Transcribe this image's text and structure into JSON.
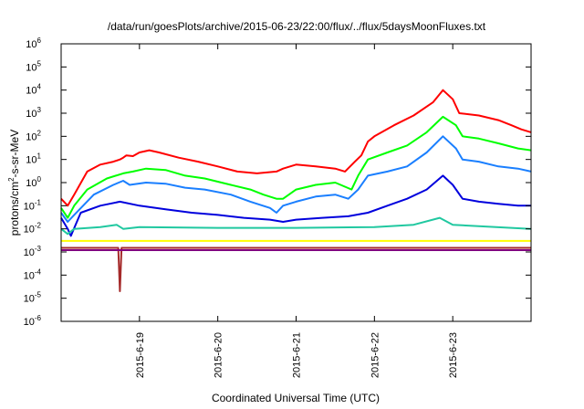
{
  "chart_data": {
    "type": "line",
    "title": "/data/run/goesPlots/archive/2015-06-23/22:00/flux/../flux/5daysMoonFluxes.txt",
    "xlabel": "Coordinated Universal Time (UTC)",
    "ylabel": {
      "prefix": "protons/cm",
      "sup": "2",
      "suffix": "-s-sr-MeV"
    },
    "y_scale": "log",
    "ylim": [
      1e-06,
      1000000.0
    ],
    "y_ticks": [
      {
        "value": 1e-06,
        "base": "10",
        "exp": "-6"
      },
      {
        "value": 1e-05,
        "base": "10",
        "exp": "-5"
      },
      {
        "value": 0.0001,
        "base": "10",
        "exp": "-4"
      },
      {
        "value": 0.001,
        "base": "10",
        "exp": "-3"
      },
      {
        "value": 0.01,
        "base": "10",
        "exp": "-2"
      },
      {
        "value": 0.1,
        "base": "10",
        "exp": "-1"
      },
      {
        "value": 1,
        "base": "10",
        "exp": "0"
      },
      {
        "value": 10.0,
        "base": "10",
        "exp": "1"
      },
      {
        "value": 100.0,
        "base": "10",
        "exp": "2"
      },
      {
        "value": 1000.0,
        "base": "10",
        "exp": "3"
      },
      {
        "value": 10000.0,
        "base": "10",
        "exp": "4"
      },
      {
        "value": 100000.0,
        "base": "10",
        "exp": "5"
      },
      {
        "value": 1000000.0,
        "base": "10",
        "exp": "6"
      }
    ],
    "x_range": [
      "2015-06-18T00:00",
      "2015-06-24T00:00"
    ],
    "x_ticks": [
      "2015-6-19",
      "2015-6-20",
      "2015-6-21",
      "2015-6-22",
      "2015-6-23"
    ],
    "grid": false,
    "legend": "none",
    "series": [
      {
        "color": "#ff0000",
        "points": [
          [
            "2015-06-18T00:00",
            0.2
          ],
          [
            "2015-06-18T02:00",
            0.1
          ],
          [
            "2015-06-18T04:00",
            0.3
          ],
          [
            "2015-06-18T08:00",
            3
          ],
          [
            "2015-06-18T12:00",
            6
          ],
          [
            "2015-06-18T16:00",
            8
          ],
          [
            "2015-06-18T18:00",
            10
          ],
          [
            "2015-06-18T19:00",
            12
          ],
          [
            "2015-06-18T20:00",
            15
          ],
          [
            "2015-06-18T22:00",
            14
          ],
          [
            "2015-06-19T00:00",
            20
          ],
          [
            "2015-06-19T03:00",
            25
          ],
          [
            "2015-06-19T06:00",
            20
          ],
          [
            "2015-06-19T12:00",
            12
          ],
          [
            "2015-06-19T18:00",
            8
          ],
          [
            "2015-06-20T00:00",
            5
          ],
          [
            "2015-06-20T06:00",
            3
          ],
          [
            "2015-06-20T12:00",
            2.5
          ],
          [
            "2015-06-20T18:00",
            3
          ],
          [
            "2015-06-20T20:00",
            4
          ],
          [
            "2015-06-21T00:00",
            6
          ],
          [
            "2015-06-21T06:00",
            5
          ],
          [
            "2015-06-21T12:00",
            4
          ],
          [
            "2015-06-21T15:00",
            3
          ],
          [
            "2015-06-21T18:00",
            8
          ],
          [
            "2015-06-21T20:00",
            15
          ],
          [
            "2015-06-21T22:00",
            60
          ],
          [
            "2015-06-22T00:00",
            100
          ],
          [
            "2015-06-22T06:00",
            300
          ],
          [
            "2015-06-22T12:00",
            800
          ],
          [
            "2015-06-22T18:00",
            3000
          ],
          [
            "2015-06-22T21:00",
            10000
          ],
          [
            "2015-06-23T00:00",
            4000
          ],
          [
            "2015-06-23T02:00",
            1000
          ],
          [
            "2015-06-23T08:00",
            800
          ],
          [
            "2015-06-23T14:00",
            500
          ],
          [
            "2015-06-23T18:00",
            300
          ],
          [
            "2015-06-23T21:00",
            200
          ],
          [
            "2015-06-24T00:00",
            150
          ]
        ]
      },
      {
        "color": "#00ff00",
        "points": [
          [
            "2015-06-18T00:00",
            0.08
          ],
          [
            "2015-06-18T02:00",
            0.03
          ],
          [
            "2015-06-18T04:00",
            0.1
          ],
          [
            "2015-06-18T08:00",
            0.5
          ],
          [
            "2015-06-18T14:00",
            1.5
          ],
          [
            "2015-06-18T19:00",
            2.5
          ],
          [
            "2015-06-18T22:00",
            3
          ],
          [
            "2015-06-19T02:00",
            4
          ],
          [
            "2015-06-19T08:00",
            3.5
          ],
          [
            "2015-06-19T14:00",
            2
          ],
          [
            "2015-06-19T20:00",
            1.5
          ],
          [
            "2015-06-20T04:00",
            0.8
          ],
          [
            "2015-06-20T10:00",
            0.5
          ],
          [
            "2015-06-20T14:00",
            0.3
          ],
          [
            "2015-06-20T18:00",
            0.2
          ],
          [
            "2015-06-20T20:00",
            0.2
          ],
          [
            "2015-06-21T00:00",
            0.5
          ],
          [
            "2015-06-21T06:00",
            0.8
          ],
          [
            "2015-06-21T12:00",
            1
          ],
          [
            "2015-06-21T17:00",
            0.5
          ],
          [
            "2015-06-21T19:00",
            2
          ],
          [
            "2015-06-21T22:00",
            10
          ],
          [
            "2015-06-22T04:00",
            20
          ],
          [
            "2015-06-22T10:00",
            40
          ],
          [
            "2015-06-22T16:00",
            150
          ],
          [
            "2015-06-22T21:00",
            700
          ],
          [
            "2015-06-23T01:00",
            300
          ],
          [
            "2015-06-23T03:00",
            100
          ],
          [
            "2015-06-23T08:00",
            80
          ],
          [
            "2015-06-23T14:00",
            50
          ],
          [
            "2015-06-23T20:00",
            30
          ],
          [
            "2015-06-24T00:00",
            25
          ]
        ]
      },
      {
        "color": "#1a7fff",
        "points": [
          [
            "2015-06-18T00:00",
            0.05
          ],
          [
            "2015-06-18T02:00",
            0.02
          ],
          [
            "2015-06-18T04:00",
            0.04
          ],
          [
            "2015-06-18T10:00",
            0.3
          ],
          [
            "2015-06-18T16:00",
            0.8
          ],
          [
            "2015-06-18T19:00",
            1.2
          ],
          [
            "2015-06-18T21:00",
            0.8
          ],
          [
            "2015-06-19T02:00",
            1
          ],
          [
            "2015-06-19T08:00",
            0.9
          ],
          [
            "2015-06-19T14:00",
            0.6
          ],
          [
            "2015-06-19T20:00",
            0.5
          ],
          [
            "2015-06-20T04:00",
            0.3
          ],
          [
            "2015-06-20T10:00",
            0.15
          ],
          [
            "2015-06-20T16:00",
            0.08
          ],
          [
            "2015-06-20T18:00",
            0.05
          ],
          [
            "2015-06-20T20:00",
            0.1
          ],
          [
            "2015-06-21T00:00",
            0.15
          ],
          [
            "2015-06-21T06:00",
            0.25
          ],
          [
            "2015-06-21T12:00",
            0.3
          ],
          [
            "2015-06-21T16:00",
            0.2
          ],
          [
            "2015-06-21T19:00",
            0.5
          ],
          [
            "2015-06-21T22:00",
            2
          ],
          [
            "2015-06-22T04:00",
            3
          ],
          [
            "2015-06-22T10:00",
            5
          ],
          [
            "2015-06-22T16:00",
            20
          ],
          [
            "2015-06-22T21:00",
            100
          ],
          [
            "2015-06-23T01:00",
            30
          ],
          [
            "2015-06-23T03:00",
            10
          ],
          [
            "2015-06-23T08:00",
            8
          ],
          [
            "2015-06-23T14:00",
            5
          ],
          [
            "2015-06-23T20:00",
            4
          ],
          [
            "2015-06-24T00:00",
            3
          ]
        ]
      },
      {
        "color": "#0000dd",
        "points": [
          [
            "2015-06-18T00:00",
            0.03
          ],
          [
            "2015-06-18T02:00",
            0.01
          ],
          [
            "2015-06-18T03:00",
            0.005
          ],
          [
            "2015-06-18T06:00",
            0.05
          ],
          [
            "2015-06-18T12:00",
            0.1
          ],
          [
            "2015-06-18T18:00",
            0.15
          ],
          [
            "2015-06-19T00:00",
            0.1
          ],
          [
            "2015-06-19T08:00",
            0.07
          ],
          [
            "2015-06-19T16:00",
            0.05
          ],
          [
            "2015-06-20T00:00",
            0.04
          ],
          [
            "2015-06-20T08:00",
            0.03
          ],
          [
            "2015-06-20T16:00",
            0.025
          ],
          [
            "2015-06-20T20:00",
            0.02
          ],
          [
            "2015-06-21T00:00",
            0.025
          ],
          [
            "2015-06-21T08:00",
            0.03
          ],
          [
            "2015-06-21T16:00",
            0.035
          ],
          [
            "2015-06-21T22:00",
            0.05
          ],
          [
            "2015-06-22T04:00",
            0.1
          ],
          [
            "2015-06-22T10:00",
            0.2
          ],
          [
            "2015-06-22T16:00",
            0.5
          ],
          [
            "2015-06-22T21:00",
            2
          ],
          [
            "2015-06-23T00:00",
            0.8
          ],
          [
            "2015-06-23T03:00",
            0.2
          ],
          [
            "2015-06-23T08:00",
            0.15
          ],
          [
            "2015-06-23T14:00",
            0.12
          ],
          [
            "2015-06-23T20:00",
            0.1
          ],
          [
            "2015-06-24T00:00",
            0.1
          ]
        ]
      },
      {
        "color": "#20c8a0",
        "points": [
          [
            "2015-06-18T00:00",
            0.01
          ],
          [
            "2015-06-18T02:00",
            0.006
          ],
          [
            "2015-06-18T04:00",
            0.01
          ],
          [
            "2015-06-18T12:00",
            0.012
          ],
          [
            "2015-06-18T17:00",
            0.015
          ],
          [
            "2015-06-18T19:00",
            0.01
          ],
          [
            "2015-06-19T00:00",
            0.012
          ],
          [
            "2015-06-20T00:00",
            0.011
          ],
          [
            "2015-06-21T00:00",
            0.011
          ],
          [
            "2015-06-22T00:00",
            0.012
          ],
          [
            "2015-06-22T12:00",
            0.015
          ],
          [
            "2015-06-22T20:00",
            0.03
          ],
          [
            "2015-06-23T00:00",
            0.015
          ],
          [
            "2015-06-24T00:00",
            0.01
          ]
        ]
      },
      {
        "color": "#ffff00",
        "points": [
          [
            "2015-06-18T00:00",
            0.003
          ],
          [
            "2015-06-18T18:00",
            0.003
          ],
          [
            "2015-06-19T12:00",
            0.003
          ],
          [
            "2015-06-20T12:00",
            0.003
          ],
          [
            "2015-06-21T12:00",
            0.003
          ],
          [
            "2015-06-22T12:00",
            0.003
          ],
          [
            "2015-06-23T12:00",
            0.003
          ],
          [
            "2015-06-24T00:00",
            0.003
          ]
        ]
      },
      {
        "color": "#a52a2a",
        "points": [
          [
            "2015-06-18T00:00",
            0.0015
          ],
          [
            "2015-06-18T17:30",
            0.0015
          ],
          [
            "2015-06-18T18:00",
            2e-05
          ],
          [
            "2015-06-18T18:30",
            0.0015
          ],
          [
            "2015-06-19T12:00",
            0.0015
          ],
          [
            "2015-06-20T12:00",
            0.0015
          ],
          [
            "2015-06-21T12:00",
            0.0015
          ],
          [
            "2015-06-22T12:00",
            0.0015
          ],
          [
            "2015-06-23T12:00",
            0.0015
          ],
          [
            "2015-06-24T00:00",
            0.0015
          ]
        ]
      },
      {
        "color": "#800080",
        "points": [
          [
            "2015-06-18T00:00",
            0.0012
          ],
          [
            "2015-06-18T18:00",
            0.0012
          ],
          [
            "2015-06-19T12:00",
            0.0012
          ],
          [
            "2015-06-20T12:00",
            0.0012
          ],
          [
            "2015-06-21T12:00",
            0.0012
          ],
          [
            "2015-06-22T12:00",
            0.0012
          ],
          [
            "2015-06-23T12:00",
            0.0012
          ],
          [
            "2015-06-24T00:00",
            0.0012
          ]
        ]
      }
    ]
  }
}
